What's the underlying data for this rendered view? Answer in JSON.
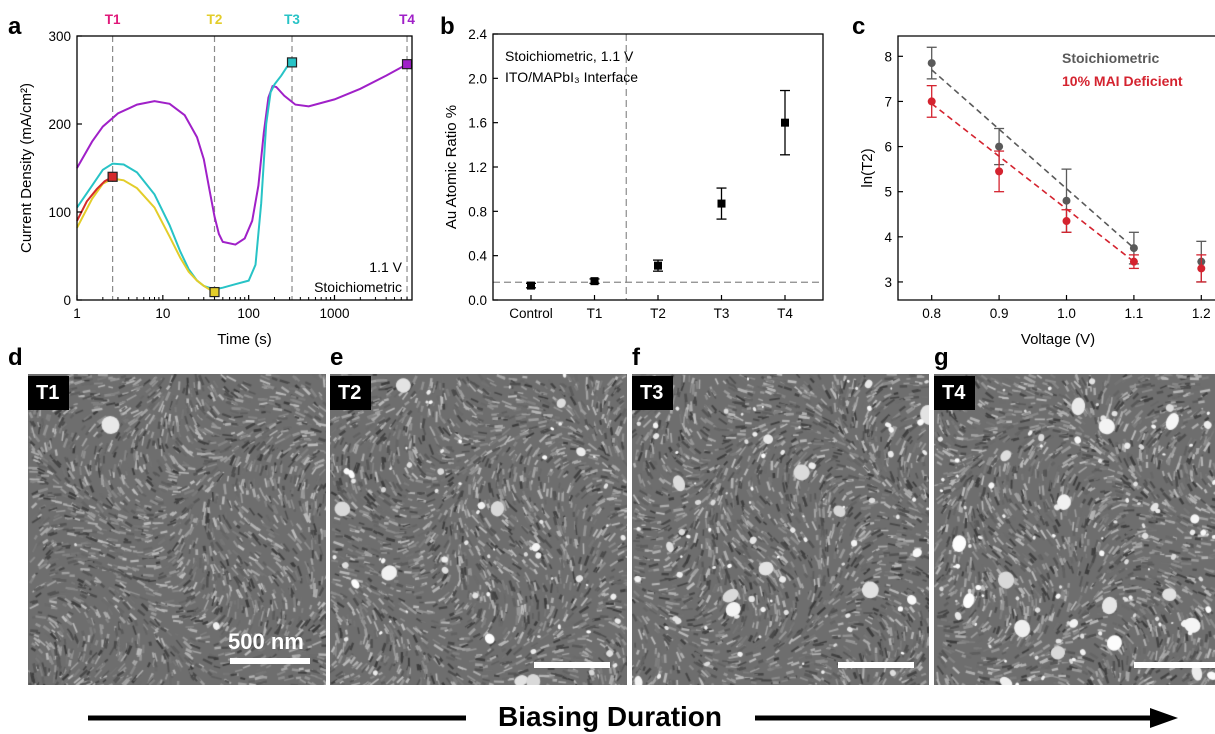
{
  "panels": {
    "a": {
      "letter": "a",
      "chart_data": {
        "type": "line",
        "xscale": "log",
        "xlim": [
          1,
          8000
        ],
        "ylim": [
          0,
          300
        ],
        "xlabel": "Time (s)",
        "ylabel": "Current Density (mA/cm²)",
        "xticks": [
          {
            "v": 1,
            "label": "1"
          },
          {
            "v": 10,
            "label": "10"
          },
          {
            "v": 100,
            "label": "100"
          },
          {
            "v": 1000,
            "label": "1000"
          }
        ],
        "yticks": [
          {
            "v": 0,
            "label": "0"
          },
          {
            "v": 100,
            "label": "100"
          },
          {
            "v": 200,
            "label": "200"
          },
          {
            "v": 300,
            "label": "300"
          }
        ],
        "annotation": [
          "1.1 V",
          "Stoichiometric"
        ],
        "markers": [
          {
            "label": "T1",
            "x": 2.6,
            "color": "#e0197a"
          },
          {
            "label": "T2",
            "x": 40,
            "color": "#e3cd2a"
          },
          {
            "label": "T3",
            "x": 320,
            "color": "#27c3c6"
          },
          {
            "label": "T4",
            "x": 7000,
            "color": "#a020c8"
          }
        ],
        "series": [
          {
            "color": "#a020c8",
            "end_marker": {
              "x": 7000,
              "y": 268
            },
            "points": [
              [
                1,
                150
              ],
              [
                1.5,
                180
              ],
              [
                2,
                197
              ],
              [
                3,
                212
              ],
              [
                5,
                222
              ],
              [
                8,
                226
              ],
              [
                12,
                223
              ],
              [
                18,
                210
              ],
              [
                25,
                185
              ],
              [
                30,
                160
              ],
              [
                35,
                125
              ],
              [
                40,
                95
              ],
              [
                45,
                75
              ],
              [
                50,
                66
              ],
              [
                70,
                63
              ],
              [
                90,
                70
              ],
              [
                110,
                90
              ],
              [
                130,
                130
              ],
              [
                150,
                190
              ],
              [
                170,
                230
              ],
              [
                190,
                243
              ],
              [
                210,
                242
              ],
              [
                260,
                232
              ],
              [
                350,
                222
              ],
              [
                500,
                220
              ],
              [
                1000,
                228
              ],
              [
                2000,
                240
              ],
              [
                4000,
                255
              ],
              [
                7000,
                268
              ]
            ]
          },
          {
            "color": "#27c3c6",
            "end_marker": {
              "x": 320,
              "y": 270
            },
            "points": [
              [
                1,
                105
              ],
              [
                1.5,
                130
              ],
              [
                2,
                148
              ],
              [
                2.6,
                155
              ],
              [
                3.5,
                154
              ],
              [
                5,
                145
              ],
              [
                8,
                120
              ],
              [
                12,
                85
              ],
              [
                16,
                55
              ],
              [
                20,
                35
              ],
              [
                25,
                22
              ],
              [
                30,
                16
              ],
              [
                40,
                12
              ],
              [
                50,
                14
              ],
              [
                70,
                18
              ],
              [
                100,
                22
              ],
              [
                120,
                40
              ],
              [
                140,
                110
              ],
              [
                160,
                200
              ],
              [
                180,
                236
              ],
              [
                200,
                245
              ],
              [
                240,
                255
              ],
              [
                280,
                265
              ],
              [
                320,
                270
              ]
            ]
          },
          {
            "color": "#e3cd2a",
            "end_marker": {
              "x": 40,
              "y": 9
            },
            "points": [
              [
                1,
                82
              ],
              [
                1.5,
                115
              ],
              [
                2,
                132
              ],
              [
                2.6,
                138
              ],
              [
                3.5,
                136
              ],
              [
                5,
                127
              ],
              [
                8,
                105
              ],
              [
                12,
                72
              ],
              [
                16,
                48
              ],
              [
                20,
                32
              ],
              [
                25,
                22
              ],
              [
                30,
                16
              ],
              [
                35,
                12
              ],
              [
                40,
                9
              ]
            ]
          },
          {
            "color": "#d42a2a",
            "end_marker": {
              "x": 2.6,
              "y": 140
            },
            "points": [
              [
                1,
                90
              ],
              [
                1.3,
                112
              ],
              [
                1.7,
                126
              ],
              [
                2.1,
                135
              ],
              [
                2.6,
                140
              ]
            ]
          }
        ]
      }
    },
    "b": {
      "letter": "b",
      "chart_data": {
        "type": "scatter",
        "ylim": [
          0,
          2.4
        ],
        "ylabel": "Au Atomic Ratio %",
        "categories": [
          "Control",
          "T1",
          "T2",
          "T3",
          "T4"
        ],
        "yticks": [
          {
            "v": 0,
            "label": "0.0"
          },
          {
            "v": 0.4,
            "label": "0.4"
          },
          {
            "v": 0.8,
            "label": "0.8"
          },
          {
            "v": 1.2,
            "label": "1.2"
          },
          {
            "v": 1.6,
            "label": "1.6"
          },
          {
            "v": 2.0,
            "label": "2.0"
          },
          {
            "v": 2.4,
            "label": "2.4"
          }
        ],
        "values": [
          0.13,
          0.17,
          0.31,
          0.87,
          1.6
        ],
        "errors": [
          0.02,
          0.02,
          0.05,
          0.14,
          0.29
        ],
        "baseline": 0.16,
        "annotation": [
          "Stoichiometric, 1.1 V",
          "ITO/MAPbI₃ Interface"
        ]
      }
    },
    "c": {
      "letter": "c",
      "chart_data": {
        "type": "scatter",
        "xlim": [
          0.75,
          1.25
        ],
        "ylim": [
          2.6,
          8.45
        ],
        "xlabel": "Voltage (V)",
        "ylabel": "ln(T2)",
        "xticks": [
          {
            "v": 0.8,
            "label": "0.8"
          },
          {
            "v": 0.9,
            "label": "0.9"
          },
          {
            "v": 1.0,
            "label": "1.0"
          },
          {
            "v": 1.1,
            "label": "1.1"
          },
          {
            "v": 1.2,
            "label": "1.2"
          }
        ],
        "yticks": [
          {
            "v": 3,
            "label": "3"
          },
          {
            "v": 4,
            "label": "4"
          },
          {
            "v": 5,
            "label": "5"
          },
          {
            "v": 6,
            "label": "6"
          },
          {
            "v": 7,
            "label": "7"
          },
          {
            "v": 8,
            "label": "8"
          }
        ],
        "x": [
          0.8,
          0.9,
          1.0,
          1.1,
          1.2
        ],
        "series": [
          {
            "name": "Stoichiometric",
            "color": "#5a5a5a",
            "values": [
              7.85,
              6.0,
              4.8,
              3.75,
              3.45
            ],
            "errors": [
              0.35,
              0.4,
              0.7,
              0.35,
              0.45
            ],
            "fit": [
              [
                0.8,
                7.7
              ],
              [
                1.1,
                3.75
              ]
            ]
          },
          {
            "name": "10% MAI Deficient",
            "color": "#d4232f",
            "values": [
              7.0,
              5.45,
              4.35,
              3.45,
              3.3
            ],
            "errors": [
              0.35,
              0.45,
              0.25,
              0.15,
              0.3
            ],
            "fit": [
              [
                0.8,
                6.95
              ],
              [
                1.1,
                3.45
              ]
            ]
          }
        ]
      }
    },
    "sem": [
      {
        "letter": "d",
        "tag": "T1",
        "particles": 3,
        "scale_text": "500 nm"
      },
      {
        "letter": "e",
        "tag": "T2",
        "particles": 70,
        "scale_text": ""
      },
      {
        "letter": "f",
        "tag": "T3",
        "particles": 90,
        "scale_text": ""
      },
      {
        "letter": "g",
        "tag": "T4",
        "particles": 110,
        "scale_text": ""
      }
    ]
  },
  "footer": {
    "label": "Biasing Duration"
  }
}
